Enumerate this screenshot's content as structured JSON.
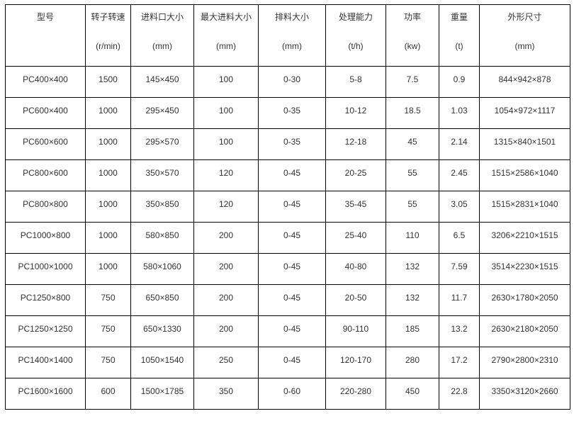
{
  "headers": [
    {
      "label": "型号",
      "unit": ""
    },
    {
      "label": "转子转速",
      "unit": "(r/min)"
    },
    {
      "label": "进料口大小",
      "unit": "(mm)"
    },
    {
      "label": "最大进料大小",
      "unit": "(mm)"
    },
    {
      "label": "排料大小",
      "unit": "(mm)"
    },
    {
      "label": "处理能力",
      "unit": "(t/h)"
    },
    {
      "label": "功率",
      "unit": "(kw)"
    },
    {
      "label": "重量",
      "unit": "(t)"
    },
    {
      "label": "外形尺寸",
      "unit": "(mm)"
    }
  ],
  "rows": [
    [
      "PC400×400",
      "1500",
      "145×450",
      "100",
      "0-30",
      "5-8",
      "7.5",
      "0.9",
      "844×942×878"
    ],
    [
      "PC600×400",
      "1000",
      "295×450",
      "100",
      "0-35",
      "10-12",
      "18.5",
      "1.03",
      "1054×972×1117"
    ],
    [
      "PC600×600",
      "1000",
      "295×570",
      "100",
      "0-35",
      "12-18",
      "45",
      "2.14",
      "1315×840×1501"
    ],
    [
      "PC800×600",
      "1000",
      "350×570",
      "120",
      "0-45",
      "20-25",
      "55",
      "2.45",
      "1515×2586×1040"
    ],
    [
      "PC800×800",
      "1000",
      "350×850",
      "120",
      "0-45",
      "35-45",
      "55",
      "3.05",
      "1515×2831×1040"
    ],
    [
      "PC1000×800",
      "1000",
      "580×850",
      "200",
      "0-45",
      "25-40",
      "110",
      "6.5",
      "3206×2210×1515"
    ],
    [
      "PC1000×1000",
      "1000",
      "580×1060",
      "200",
      "0-45",
      "40-80",
      "132",
      "7.59",
      "3514×2230×1515"
    ],
    [
      "PC1250×800",
      "750",
      "650×850",
      "200",
      "0-45",
      "20-50",
      "132",
      "11.7",
      "2630×1780×2050"
    ],
    [
      "PC1250×1250",
      "750",
      "650×1330",
      "200",
      "0-45",
      "90-110",
      "185",
      "13.2",
      "2630×2180×2050"
    ],
    [
      "PC1400×1400",
      "750",
      "1050×1540",
      "250",
      "0-45",
      "120-170",
      "280",
      "17.2",
      "2790×2800×2310"
    ],
    [
      "PC1600×1600",
      "600",
      "1500×1785",
      "350",
      "0-60",
      "220-280",
      "450",
      "22.8",
      "3350×3120×2660"
    ]
  ]
}
